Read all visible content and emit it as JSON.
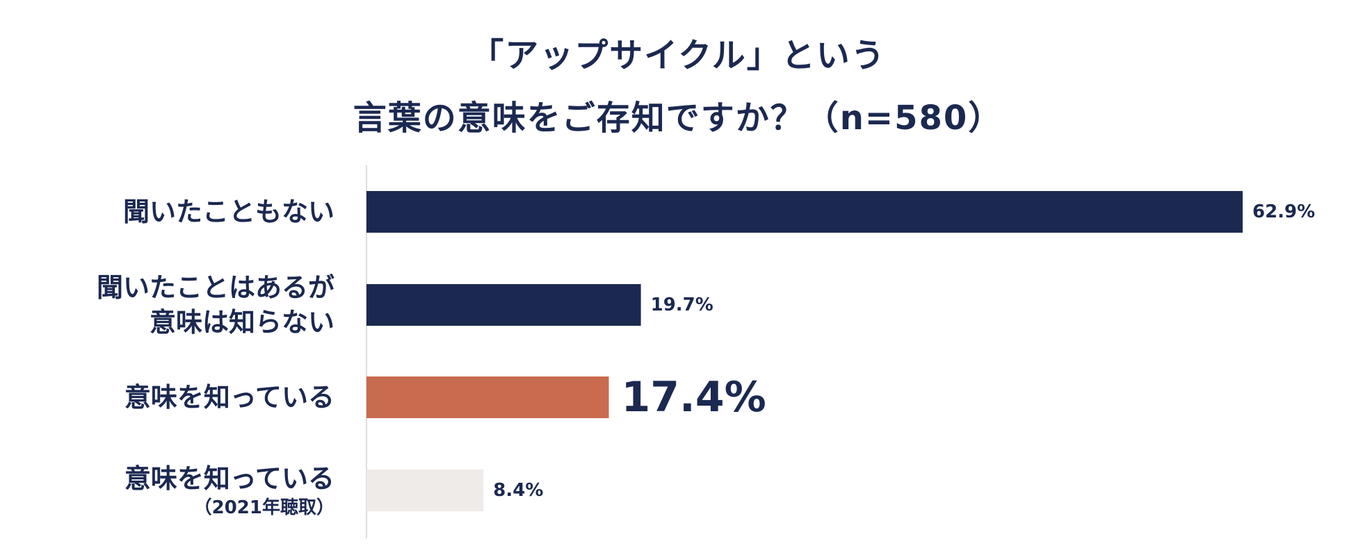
{
  "chart_data": {
    "type": "bar",
    "orientation": "horizontal",
    "title_lines": [
      "「アップサイクル」という",
      "言葉の意味をご存知ですか？（n=580）"
    ],
    "categories": [
      {
        "label": "聞いたこともない",
        "sublabel": ""
      },
      {
        "label": "聞いたことはあるが\n意味は知らない",
        "sublabel": ""
      },
      {
        "label": "意味を知っている",
        "sublabel": ""
      },
      {
        "label": "意味を知っている",
        "sublabel": "（2021年聴取）"
      }
    ],
    "values": [
      62.9,
      19.7,
      17.4,
      8.4
    ],
    "value_labels": [
      "62.9%",
      "19.7%",
      "17.4%",
      "8.4%"
    ],
    "highlight_index": 2,
    "colors": [
      "#1b2951",
      "#1b2951",
      "#c96b4e",
      "#eeebe8"
    ],
    "text_color": "#1b2951",
    "xlim": [
      0,
      62.9
    ],
    "grid": false,
    "legend": "none"
  }
}
